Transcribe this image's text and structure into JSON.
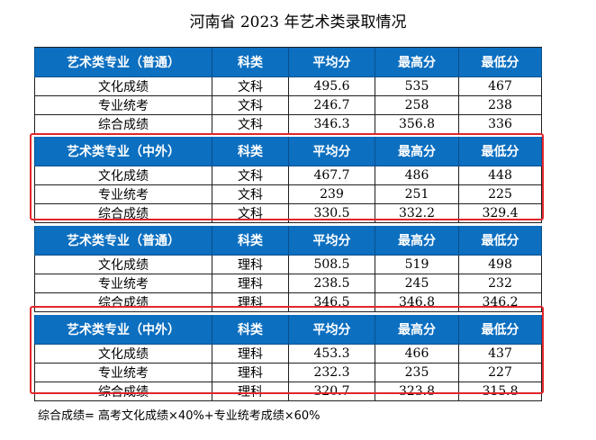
{
  "title": "河南省 2023 年艺术类录取情况",
  "columns": [
    "科类",
    "平均分",
    "最高分",
    "最低分"
  ],
  "sections": [
    {
      "header": "艺术类专业（普通）",
      "rows": [
        [
          "文化成绩",
          "文科",
          "495.6",
          "535",
          "467"
        ],
        [
          "专业统考",
          "文科",
          "246.7",
          "258",
          "238"
        ],
        [
          "综合成绩",
          "文科",
          "346.3",
          "356.8",
          "336"
        ]
      ]
    },
    {
      "header": "艺术类专业（中外）",
      "rows": [
        [
          "文化成绩",
          "文科",
          "467.7",
          "486",
          "448"
        ],
        [
          "专业统考",
          "文科",
          "239",
          "251",
          "225"
        ],
        [
          "综合成绩",
          "文科",
          "330.5",
          "332.2",
          "329.4"
        ]
      ]
    },
    {
      "header": "艺术类专业（普通）",
      "rows": [
        [
          "文化成绩",
          "理科",
          "508.5",
          "519",
          "498"
        ],
        [
          "专业统考",
          "理科",
          "238.5",
          "245",
          "232"
        ],
        [
          "综合成绩",
          "理科",
          "346.5",
          "346.8",
          "346.2"
        ]
      ]
    },
    {
      "header": "艺术类专业（中外）",
      "rows": [
        [
          "文化成绩",
          "理科",
          "453.3",
          "466",
          "437"
        ],
        [
          "专业统考",
          "理科",
          "232.3",
          "235",
          "227"
        ],
        [
          "综合成绩",
          "理科",
          "320.7",
          "323.8",
          "315.8"
        ]
      ]
    }
  ],
  "footnote": "综合成绩= 高考文化成绩×40%+专业统考成绩×60%",
  "colors": {
    "header_bg": "#0c6fc0",
    "highlight_border": "#e0262b"
  }
}
